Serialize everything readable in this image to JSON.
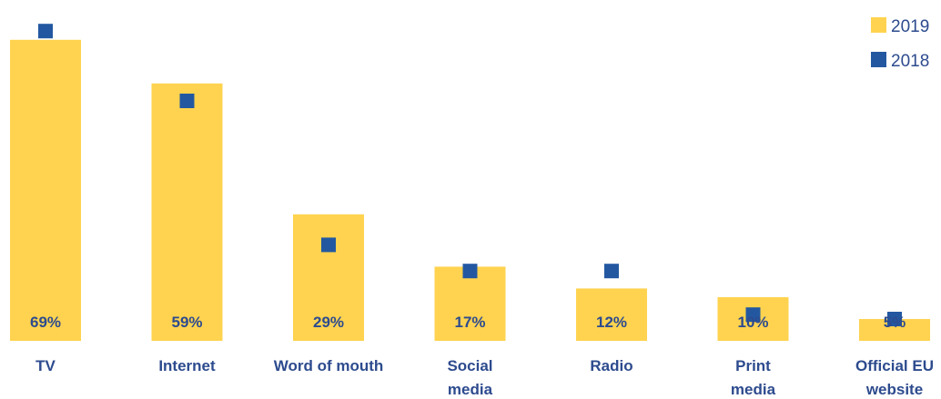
{
  "chart_data": {
    "type": "bar",
    "categories": [
      [
        "TV"
      ],
      [
        "Internet"
      ],
      [
        "Word of mouth"
      ],
      [
        "Social",
        "media"
      ],
      [
        "Radio"
      ],
      [
        "Print",
        "media"
      ],
      [
        "Official EU",
        "website"
      ]
    ],
    "series": [
      {
        "name": "2019",
        "marker": "bar",
        "values": [
          69,
          59,
          29,
          17,
          12,
          10,
          5
        ],
        "data_labels": [
          "69%",
          "59%",
          "29%",
          "17%",
          "12%",
          "10%",
          "5%"
        ]
      },
      {
        "name": "2018",
        "marker": "square",
        "values": [
          71,
          55,
          22,
          16,
          16,
          6,
          5
        ]
      }
    ],
    "ylim": [
      0,
      75
    ],
    "grid": false,
    "legend_position": "top-right",
    "colors": {
      "2019": "#FFD34F",
      "2018": "#2358A1",
      "label_text": "#2D4B8E"
    }
  }
}
